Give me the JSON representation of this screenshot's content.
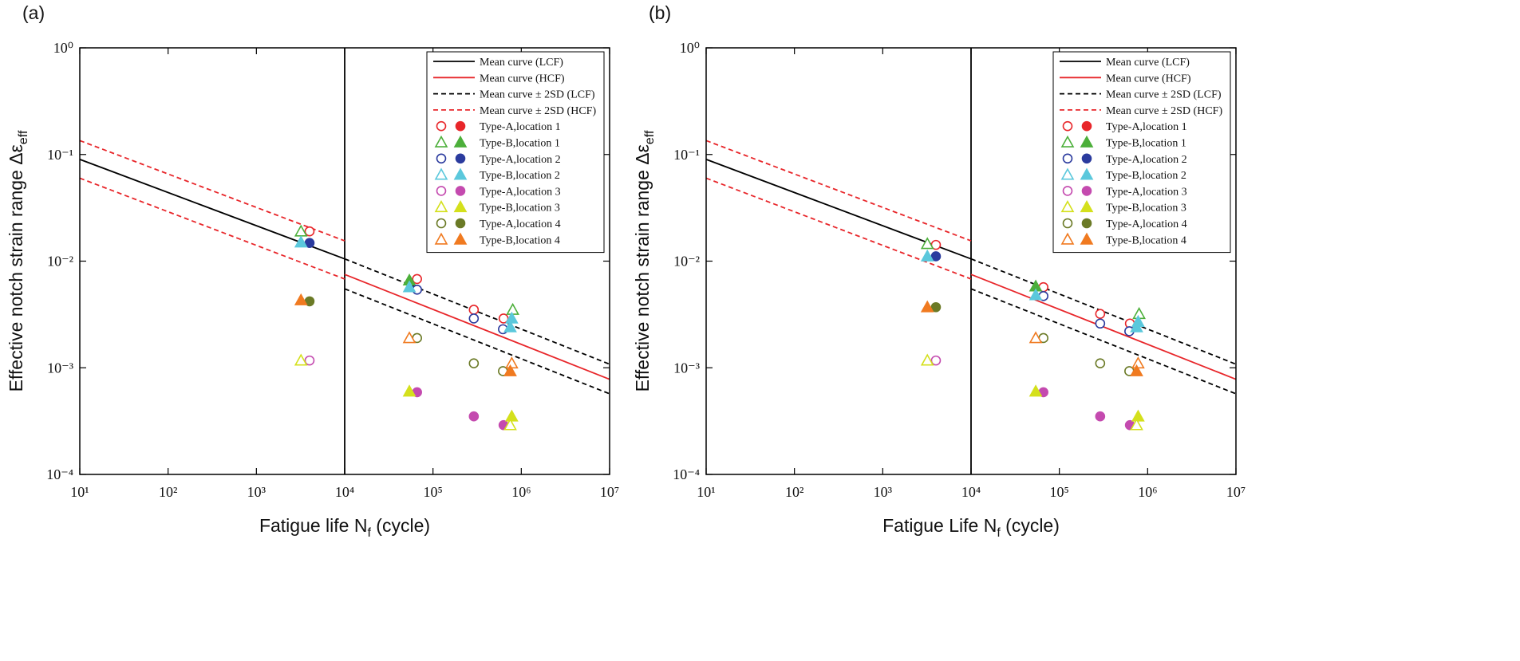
{
  "chart_data": [
    {
      "type": "scatter",
      "panel_label": "(a)",
      "x_label": {
        "text": "Fatigue life N",
        "sub": "f",
        "after": " (cycle)"
      },
      "y_label": {
        "text": "Effective notch strain range Δε",
        "sub": "eff"
      },
      "log_x": true,
      "log_y": true,
      "xlim": [
        10,
        10000000
      ],
      "ylim": [
        0.0001,
        1
      ],
      "xticks": [
        {
          "value": 10,
          "label": "10¹"
        },
        {
          "value": 100,
          "label": "10²"
        },
        {
          "value": 1000,
          "label": "10³"
        },
        {
          "value": 10000,
          "label": "10⁴"
        },
        {
          "value": 100000,
          "label": "10⁵"
        },
        {
          "value": 1000000,
          "label": "10⁶"
        },
        {
          "value": 10000000,
          "label": "10⁷"
        }
      ],
      "yticks": [
        {
          "value": 0.0001,
          "label": "10⁻⁴"
        },
        {
          "value": 0.001,
          "label": "10⁻³"
        },
        {
          "value": 0.01,
          "label": "10⁻²"
        },
        {
          "value": 0.1,
          "label": "10⁻¹"
        },
        {
          "value": 1,
          "label": "10⁰"
        }
      ],
      "vline": 10000,
      "legend": "upper right",
      "lines": [
        {
          "name": "Mean curve (LCF)",
          "color": "#000000",
          "dashed": false,
          "x": [
            10,
            10000
          ],
          "values": [
            0.09,
            0.0105
          ]
        },
        {
          "name": "Mean curve (HCF)",
          "color": "#e8262a",
          "dashed": false,
          "x": [
            10000,
            10000000
          ],
          "values": [
            0.0075,
            0.00078
          ]
        },
        {
          "name": "Mean curve ± 2SD (LCF)",
          "color": "#000000",
          "dashed": true,
          "x": [
            10000,
            10000000,
            null,
            10000,
            10000000
          ],
          "values": [
            0.0105,
            0.00108,
            null,
            0.0055,
            0.00057
          ]
        },
        {
          "name": "Mean curve ± 2SD (HCF)",
          "color": "#e8262a",
          "dashed": true,
          "x": [
            10,
            10000,
            null,
            10,
            10000
          ],
          "values": [
            0.135,
            0.0155,
            null,
            0.06,
            0.0068
          ]
        }
      ],
      "series": [
        {
          "name": "Type-A,location 1",
          "color": "#e8262a",
          "marker": "circle",
          "x": [
            4000,
            66000,
            290000,
            630000
          ],
          "values": [
            0.019,
            0.0068,
            0.0035,
            0.0029
          ],
          "filled": [
            false,
            false,
            false,
            false
          ]
        },
        {
          "name": "Type-B,location 1",
          "color": "#4caf3a",
          "marker": "triangle",
          "x": [
            3200,
            54000,
            800000
          ],
          "values": [
            0.019,
            0.0066,
            0.0035
          ],
          "filled": [
            false,
            true,
            false
          ]
        },
        {
          "name": "Type-A,location 2",
          "color": "#2b3b9e",
          "marker": "circle",
          "x": [
            4000,
            66000,
            290000,
            620000
          ],
          "values": [
            0.0148,
            0.0054,
            0.0029,
            0.0023
          ],
          "filled": [
            true,
            false,
            false,
            false
          ]
        },
        {
          "name": "Type-B,location 2",
          "color": "#5bc8dc",
          "marker": "triangle",
          "x": [
            3200,
            54000,
            780000,
            750000
          ],
          "values": [
            0.015,
            0.0057,
            0.0029,
            0.0024
          ],
          "filled": [
            true,
            true,
            true,
            true
          ]
        },
        {
          "name": "Type-A,location 3",
          "color": "#c44aaf",
          "marker": "circle",
          "x": [
            4000,
            66000,
            290000,
            630000
          ],
          "values": [
            0.00117,
            0.00059,
            0.00035,
            0.00029
          ],
          "filled": [
            false,
            true,
            true,
            true
          ]
        },
        {
          "name": "Type-B,location 3",
          "color": "#d4e01c",
          "marker": "triangle",
          "x": [
            3200,
            54000,
            780000,
            750000
          ],
          "values": [
            0.00117,
            0.0006,
            0.00035,
            0.00029
          ],
          "filled": [
            false,
            true,
            true,
            false
          ]
        },
        {
          "name": "Type-A,location 4",
          "color": "#6b7a26",
          "marker": "circle",
          "x": [
            4000,
            66000,
            290000,
            620000
          ],
          "values": [
            0.0042,
            0.0019,
            0.0011,
            0.00093
          ],
          "filled": [
            true,
            false,
            false,
            false
          ]
        },
        {
          "name": "Type-B,location 4",
          "color": "#f07a20",
          "marker": "triangle",
          "x": [
            3200,
            54000,
            780000,
            750000
          ],
          "values": [
            0.0043,
            0.0019,
            0.0011,
            0.00093
          ],
          "filled": [
            true,
            false,
            false,
            true
          ]
        }
      ]
    },
    {
      "type": "scatter",
      "panel_label": "(b)",
      "x_label": {
        "text": "Fatigue Life N",
        "sub": "f",
        "after": " (cycle)"
      },
      "y_label": {
        "text": "Effective notch strain range Δε",
        "sub": "eff"
      },
      "log_x": true,
      "log_y": true,
      "xlim": [
        10,
        10000000
      ],
      "ylim": [
        0.0001,
        1
      ],
      "xticks": [
        {
          "value": 10,
          "label": "10¹"
        },
        {
          "value": 100,
          "label": "10²"
        },
        {
          "value": 1000,
          "label": "10³"
        },
        {
          "value": 10000,
          "label": "10⁴"
        },
        {
          "value": 100000,
          "label": "10⁵"
        },
        {
          "value": 1000000,
          "label": "10⁶"
        },
        {
          "value": 10000000,
          "label": "10⁷"
        }
      ],
      "yticks": [
        {
          "value": 0.0001,
          "label": "10⁻⁴"
        },
        {
          "value": 0.001,
          "label": "10⁻³"
        },
        {
          "value": 0.01,
          "label": "10⁻²"
        },
        {
          "value": 0.1,
          "label": "10⁻¹"
        },
        {
          "value": 1,
          "label": "10⁰"
        }
      ],
      "vline": 10000,
      "legend": "upper right",
      "lines": [
        {
          "name": "Mean curve (LCF)",
          "color": "#000000",
          "dashed": false,
          "x": [
            10,
            10000
          ],
          "values": [
            0.09,
            0.0105
          ]
        },
        {
          "name": "Mean curve (HCF)",
          "color": "#e8262a",
          "dashed": false,
          "x": [
            10000,
            10000000
          ],
          "values": [
            0.0075,
            0.00078
          ]
        },
        {
          "name": "Mean curve ± 2SD (LCF)",
          "color": "#000000",
          "dashed": true,
          "x": [
            10000,
            10000000,
            null,
            10000,
            10000000
          ],
          "values": [
            0.0105,
            0.00108,
            null,
            0.0055,
            0.00057
          ]
        },
        {
          "name": "Mean curve ± 2SD (HCF)",
          "color": "#e8262a",
          "dashed": true,
          "x": [
            10,
            10000,
            null,
            10,
            10000
          ],
          "values": [
            0.135,
            0.0155,
            null,
            0.06,
            0.0068
          ]
        }
      ],
      "series": [
        {
          "name": "Type-A,location 1",
          "color": "#e8262a",
          "marker": "circle",
          "x": [
            4000,
            66000,
            290000,
            630000
          ],
          "values": [
            0.0142,
            0.0057,
            0.0032,
            0.0026
          ],
          "filled": [
            false,
            false,
            false,
            false
          ]
        },
        {
          "name": "Type-B,location 1",
          "color": "#4caf3a",
          "marker": "triangle",
          "x": [
            3200,
            54000,
            800000
          ],
          "values": [
            0.0145,
            0.0058,
            0.0032
          ],
          "filled": [
            false,
            true,
            false
          ]
        },
        {
          "name": "Type-A,location 2",
          "color": "#2b3b9e",
          "marker": "circle",
          "x": [
            4000,
            66000,
            290000,
            620000
          ],
          "values": [
            0.0111,
            0.0047,
            0.0026,
            0.0022
          ],
          "filled": [
            true,
            false,
            false,
            false
          ]
        },
        {
          "name": "Type-B,location 2",
          "color": "#5bc8dc",
          "marker": "triangle",
          "x": [
            3200,
            54000,
            780000,
            750000
          ],
          "values": [
            0.0111,
            0.0048,
            0.0027,
            0.0024
          ],
          "filled": [
            true,
            true,
            true,
            true
          ]
        },
        {
          "name": "Type-A,location 3",
          "color": "#c44aaf",
          "marker": "circle",
          "x": [
            4000,
            66000,
            290000,
            630000
          ],
          "values": [
            0.00117,
            0.00059,
            0.00035,
            0.00029
          ],
          "filled": [
            false,
            true,
            true,
            true
          ]
        },
        {
          "name": "Type-B,location 3",
          "color": "#d4e01c",
          "marker": "triangle",
          "x": [
            3200,
            54000,
            780000,
            750000
          ],
          "values": [
            0.00117,
            0.0006,
            0.00035,
            0.00029
          ],
          "filled": [
            false,
            true,
            true,
            false
          ]
        },
        {
          "name": "Type-A,location 4",
          "color": "#6b7a26",
          "marker": "circle",
          "x": [
            4000,
            66000,
            290000,
            620000
          ],
          "values": [
            0.0037,
            0.0019,
            0.0011,
            0.00093
          ],
          "filled": [
            true,
            false,
            false,
            false
          ]
        },
        {
          "name": "Type-B,location 4",
          "color": "#f07a20",
          "marker": "triangle",
          "x": [
            3200,
            54000,
            780000,
            750000
          ],
          "values": [
            0.0037,
            0.0019,
            0.0011,
            0.00093
          ],
          "filled": [
            true,
            false,
            false,
            true
          ]
        }
      ]
    }
  ]
}
